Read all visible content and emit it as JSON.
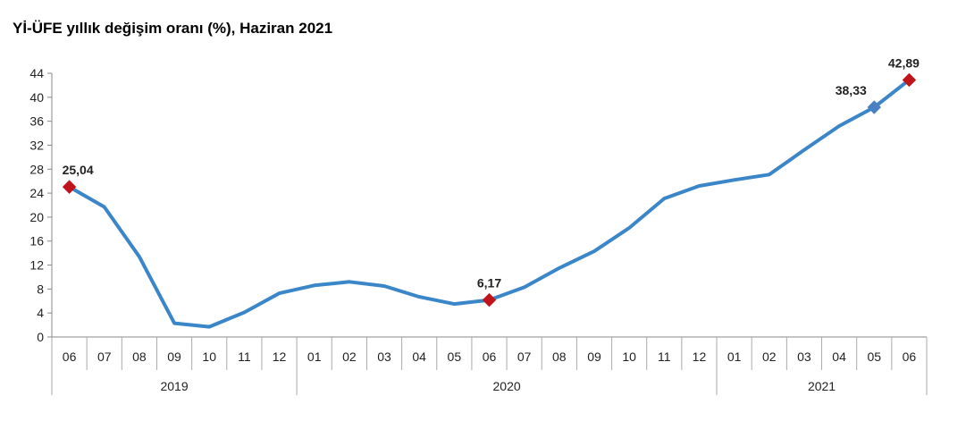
{
  "title": "Yİ-ÜFE yıllık değişim oranı (%), Haziran 2021",
  "chart_data": {
    "type": "line",
    "title": "Yİ-ÜFE yıllık değişim oranı (%), Haziran 2021",
    "xlabel": "",
    "ylabel": "",
    "ylim": [
      0,
      44
    ],
    "yticks": [
      0,
      4,
      8,
      12,
      16,
      20,
      24,
      28,
      32,
      36,
      40,
      44
    ],
    "categories": [
      "06",
      "07",
      "08",
      "09",
      "10",
      "11",
      "12",
      "01",
      "02",
      "03",
      "04",
      "05",
      "06",
      "07",
      "08",
      "09",
      "10",
      "11",
      "12",
      "01",
      "02",
      "03",
      "04",
      "05",
      "06"
    ],
    "year_groups": [
      {
        "label": "2019",
        "start": 0,
        "end": 6
      },
      {
        "label": "2020",
        "start": 7,
        "end": 18
      },
      {
        "label": "2021",
        "start": 19,
        "end": 24
      }
    ],
    "series": [
      {
        "values": [
          25.04,
          21.7,
          13.4,
          2.3,
          1.7,
          4.1,
          7.3,
          8.6,
          9.2,
          8.5,
          6.7,
          5.5,
          6.17,
          8.3,
          11.5,
          14.3,
          18.2,
          23.1,
          25.2,
          26.2,
          27.1,
          31.2,
          35.2,
          38.33,
          42.89
        ],
        "color": "#3a86c8"
      }
    ],
    "labeled_points": [
      {
        "index": 0,
        "label": "25,04",
        "marker": "diamond",
        "color": "#c0141b"
      },
      {
        "index": 12,
        "label": "6,17",
        "marker": "diamond",
        "color": "#c0141b"
      },
      {
        "index": 23,
        "label": "38,33",
        "marker": "diamond",
        "color": "#4a7fc1"
      },
      {
        "index": 24,
        "label": "42,89",
        "marker": "diamond",
        "color": "#c0141b"
      }
    ],
    "grid": false,
    "legend": "none"
  }
}
